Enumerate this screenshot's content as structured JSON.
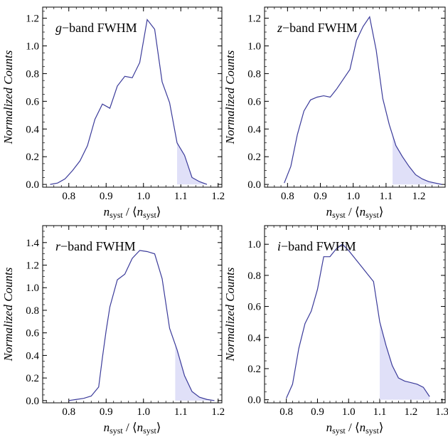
{
  "chart_data": [
    {
      "type": "line",
      "title": "g−band FWHM",
      "title_italic_prefix": "g",
      "title_rest": "−band FWHM",
      "xlabel": "n_syst / ⟨n_syst⟩",
      "ylabel": "Normalized Counts",
      "xlim": [
        0.73,
        1.21
      ],
      "ylim": [
        -0.02,
        1.28
      ],
      "xticks": [
        0.8,
        0.9,
        1.0,
        1.1,
        1.2
      ],
      "xtick_labels": [
        "0.8",
        "0.9",
        "1.0",
        "1.1",
        "1.2"
      ],
      "yticks": [
        0.0,
        0.2,
        0.4,
        0.6,
        0.8,
        1.0,
        1.2
      ],
      "ytick_labels": [
        "0.0",
        "0.2",
        "0.4",
        "0.6",
        "0.8",
        "1.0",
        "1.2"
      ],
      "shade_from_x": 1.09,
      "line_color": "#3b3b9a",
      "fill_color": "#e0e0f8",
      "x": [
        0.75,
        0.77,
        0.79,
        0.81,
        0.83,
        0.85,
        0.87,
        0.89,
        0.91,
        0.93,
        0.95,
        0.97,
        0.99,
        1.01,
        1.03,
        1.05,
        1.07,
        1.09,
        1.11,
        1.13,
        1.15,
        1.17
      ],
      "y": [
        0.0,
        0.01,
        0.04,
        0.1,
        0.17,
        0.28,
        0.47,
        0.58,
        0.55,
        0.71,
        0.78,
        0.77,
        0.88,
        1.19,
        1.12,
        0.74,
        0.59,
        0.3,
        0.21,
        0.05,
        0.02,
        0.0
      ]
    },
    {
      "type": "line",
      "title": "z−band FWHM",
      "title_italic_prefix": "z",
      "title_rest": "−band FWHM",
      "xlabel": "n_syst / ⟨n_syst⟩",
      "ylabel": "Normalized Counts",
      "xlim": [
        0.73,
        1.28
      ],
      "ylim": [
        -0.02,
        1.28
      ],
      "xticks": [
        0.8,
        0.9,
        1.0,
        1.1,
        1.2
      ],
      "xtick_labels": [
        "0.8",
        "0.9",
        "1.0",
        "1.1",
        "1.2"
      ],
      "yticks": [
        0.0,
        0.2,
        0.4,
        0.6,
        0.8,
        1.0,
        1.2
      ],
      "ytick_labels": [
        "0.0",
        "0.2",
        "0.4",
        "0.6",
        "0.8",
        "1.0",
        "1.2"
      ],
      "shade_from_x": 1.12,
      "line_color": "#3b3b9a",
      "fill_color": "#e0e0f8",
      "x": [
        0.79,
        0.81,
        0.83,
        0.85,
        0.87,
        0.89,
        0.91,
        0.93,
        0.95,
        0.97,
        0.99,
        1.01,
        1.03,
        1.05,
        1.07,
        1.09,
        1.11,
        1.13,
        1.15,
        1.17,
        1.19,
        1.21,
        1.23,
        1.25,
        1.27
      ],
      "y": [
        0.01,
        0.13,
        0.36,
        0.53,
        0.61,
        0.63,
        0.64,
        0.63,
        0.69,
        0.76,
        0.83,
        1.04,
        1.14,
        1.21,
        0.97,
        0.62,
        0.43,
        0.28,
        0.2,
        0.13,
        0.07,
        0.04,
        0.02,
        0.01,
        0.0
      ]
    },
    {
      "type": "line",
      "title": "r−band FWHM",
      "title_italic_prefix": "r",
      "title_rest": "−band FWHM",
      "xlabel": "n_syst / ⟨n_syst⟩",
      "ylabel": "Normalized Counts",
      "xlim": [
        0.73,
        1.21
      ],
      "ylim": [
        -0.02,
        1.55
      ],
      "xticks": [
        0.8,
        0.9,
        1.0,
        1.1,
        1.2
      ],
      "xtick_labels": [
        "0.8",
        "0.9",
        "1.0",
        "1.1",
        "1.2"
      ],
      "yticks": [
        0.0,
        0.2,
        0.4,
        0.6,
        0.8,
        1.0,
        1.2,
        1.4
      ],
      "ytick_labels": [
        "0.0",
        "0.2",
        "0.4",
        "0.6",
        "0.8",
        "1.0",
        "1.2",
        "1.4"
      ],
      "shade_from_x": 1.085,
      "line_color": "#3b3b9a",
      "fill_color": "#e0e0f8",
      "x": [
        0.8,
        0.82,
        0.84,
        0.86,
        0.88,
        0.89,
        0.9,
        0.91,
        0.93,
        0.95,
        0.97,
        0.99,
        1.01,
        1.03,
        1.05,
        1.07,
        1.09,
        1.11,
        1.13,
        1.15,
        1.17,
        1.19
      ],
      "y": [
        0.0,
        0.01,
        0.02,
        0.04,
        0.12,
        0.38,
        0.62,
        0.83,
        1.07,
        1.12,
        1.26,
        1.33,
        1.32,
        1.3,
        1.08,
        0.64,
        0.45,
        0.22,
        0.08,
        0.03,
        0.01,
        0.0
      ]
    },
    {
      "type": "line",
      "title": "i−band FWHM",
      "title_italic_prefix": "i",
      "title_rest": "−band FWHM",
      "xlabel": "n_syst / ⟨n_syst⟩",
      "ylabel": "Normalized Counts",
      "xlim": [
        0.73,
        1.31
      ],
      "ylim": [
        -0.02,
        1.12
      ],
      "xticks": [
        0.8,
        0.9,
        1.0,
        1.1,
        1.2,
        1.3
      ],
      "xtick_labels": [
        "0.8",
        "0.9",
        "1.0",
        "1.1",
        "1.2",
        "1.3"
      ],
      "yticks": [
        0.0,
        0.2,
        0.4,
        0.6,
        0.8,
        1.0
      ],
      "ytick_labels": [
        "0.0",
        "0.2",
        "0.4",
        "0.6",
        "0.8",
        "1.0"
      ],
      "shade_from_x": 1.1,
      "line_color": "#3b3b9a",
      "fill_color": "#e0e0f8",
      "x": [
        0.8,
        0.82,
        0.84,
        0.86,
        0.88,
        0.9,
        0.92,
        0.94,
        0.96,
        0.98,
        1.0,
        1.02,
        1.04,
        1.06,
        1.08,
        1.1,
        1.12,
        1.14,
        1.16,
        1.18,
        1.2,
        1.22,
        1.24,
        1.26
      ],
      "y": [
        0.01,
        0.1,
        0.33,
        0.49,
        0.57,
        0.71,
        0.92,
        0.92,
        0.97,
        1.0,
        0.96,
        0.91,
        0.86,
        0.81,
        0.76,
        0.5,
        0.35,
        0.22,
        0.14,
        0.12,
        0.11,
        0.1,
        0.08,
        0.02
      ]
    }
  ]
}
